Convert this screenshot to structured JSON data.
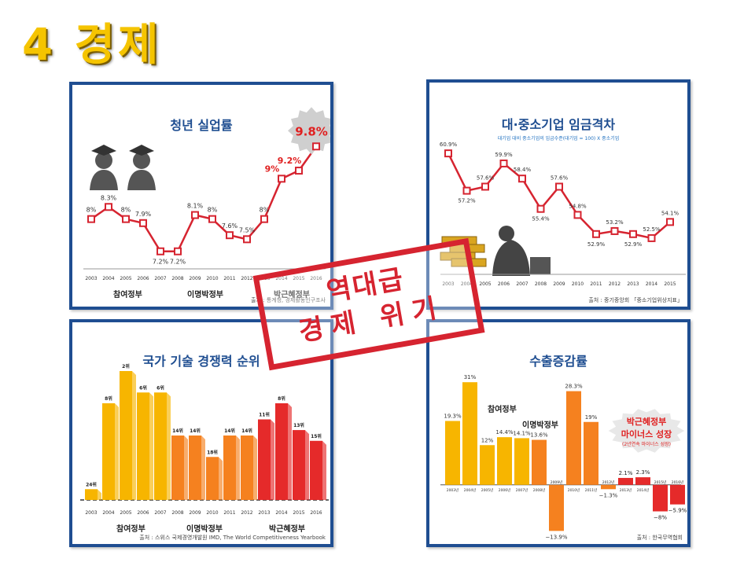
{
  "slide": {
    "title": "4 경제"
  },
  "stamp": {
    "line1": "역대급",
    "line2": "경제 위기"
  },
  "chart_data": [
    {
      "id": "youth-unemployment",
      "type": "line",
      "title": "청년 실업률",
      "x": [
        "2003",
        "2004",
        "2005",
        "2006",
        "2007",
        "2008",
        "2009",
        "2010",
        "2011",
        "2012",
        "2013",
        "2014",
        "2015",
        "2016"
      ],
      "values": [
        8,
        8.3,
        8,
        7.9,
        7.2,
        7.2,
        8.1,
        8,
        7.6,
        7.5,
        8,
        9,
        9.2,
        9.8
      ],
      "labels": [
        "8%",
        "8.3%",
        "8%",
        "7.9%",
        "7.2%",
        "7.2%",
        "8.1%",
        "8%",
        "7.6%",
        "7.5%",
        "8%",
        "9%",
        "9.2%",
        "9.8%"
      ],
      "highlight": "9.8%",
      "eras": [
        {
          "name": "참여정부",
          "color": "#f2b400"
        },
        {
          "name": "이명박정부",
          "color": "#f07020"
        },
        {
          "name": "박근혜정부",
          "color": "#e02020"
        }
      ],
      "source": "출처 : 통계청, 경제활동인구조사",
      "line_color": "#d62430",
      "ylim": [
        7,
        10
      ]
    },
    {
      "id": "wage-gap",
      "type": "line",
      "title": "대·중소기업 임금격차",
      "subtitle": "대기업 대비 중소기업의 임금수준(대기업 = 100) X 중소기업",
      "x": [
        "2003",
        "2004",
        "2005",
        "2006",
        "2007",
        "2008",
        "2009",
        "2010",
        "2011",
        "2012",
        "2013",
        "2014",
        "2015"
      ],
      "values": [
        60.9,
        57.2,
        57.6,
        59.9,
        58.4,
        55.4,
        57.6,
        54.8,
        52.9,
        53.2,
        52.9,
        52.5,
        54.1
      ],
      "labels": [
        "60.9%",
        "57.2%",
        "57.6%",
        "59.9%",
        "58.4%",
        "55.4%",
        "57.6%",
        "54.8%",
        "52.9%",
        "53.2%",
        "52.9%",
        "52.5%",
        "54.1%"
      ],
      "source": "출처 : 중기중앙회 「중소기업위상지표」",
      "line_color": "#d62430",
      "ylim": [
        50,
        62
      ]
    },
    {
      "id": "tech-competitiveness",
      "type": "bar",
      "title": "국가 기술 경쟁력 순위",
      "x": [
        "2003",
        "2004",
        "2005",
        "2006",
        "2007",
        "2008",
        "2009",
        "2010",
        "2011",
        "2012",
        "2013",
        "2014",
        "2015",
        "2016"
      ],
      "values": [
        24,
        8,
        2,
        6,
        6,
        14,
        14,
        18,
        14,
        14,
        11,
        8,
        13,
        15
      ],
      "labels": [
        "24위",
        "8위",
        "2위",
        "6위",
        "6위",
        "14위",
        "14위",
        "18위",
        "14위",
        "14위",
        "11위",
        "8위",
        "13위",
        "15위"
      ],
      "colors": [
        "#f7b500",
        "#f7b500",
        "#f7b500",
        "#f7b500",
        "#f7b500",
        "#f5811f",
        "#f5811f",
        "#f5811f",
        "#f5811f",
        "#f5811f",
        "#e52a2a",
        "#e52a2a",
        "#e52a2a",
        "#e52a2a"
      ],
      "eras": [
        {
          "name": "참여정부",
          "color": "#f2b400"
        },
        {
          "name": "이명박정부",
          "color": "#f07020"
        },
        {
          "name": "박근혜정부",
          "color": "#e02020"
        }
      ],
      "source": "출처 : 스위스 국제경영개발원 IMD, The World Competitiveness Yearbook"
    },
    {
      "id": "export-growth",
      "type": "bar",
      "title": "수출증감률",
      "x": [
        "2003년",
        "2004년",
        "2005년",
        "2006년",
        "2007년",
        "2008년",
        "2009년",
        "2010년",
        "2011년",
        "2012년",
        "2013년",
        "2014년",
        "2015년",
        "2016년"
      ],
      "values": [
        19.3,
        31,
        12,
        14.4,
        14.1,
        13.6,
        -13.9,
        28.3,
        19,
        -1.3,
        2.1,
        2.3,
        -8,
        -5.9
      ],
      "labels": [
        "19.3%",
        "31%",
        "12%",
        "14.4%",
        "14.1%",
        "13.6%",
        "−13.9%",
        "28.3%",
        "19%",
        "−1.3%",
        "2.1%",
        "2.3%",
        "−8%",
        "−5.9%"
      ],
      "colors": [
        "#f7b500",
        "#f7b500",
        "#f7b500",
        "#f7b500",
        "#f7b500",
        "#f5811f",
        "#f5811f",
        "#f5811f",
        "#f5811f",
        "#f5811f",
        "#e52a2a",
        "#e52a2a",
        "#e52a2a",
        "#e52a2a"
      ],
      "eras": [
        {
          "name": "참여정부",
          "color": "#f2b400"
        },
        {
          "name": "이명박정부",
          "color": "#f07020"
        }
      ],
      "note": {
        "line1": "박근혜정부",
        "line2": "마이너스 성장",
        "line3": "(2년연속 마이너스 성장)"
      },
      "source": "출처 : 한국무역협회",
      "ylim": [
        -15,
        32
      ]
    }
  ]
}
